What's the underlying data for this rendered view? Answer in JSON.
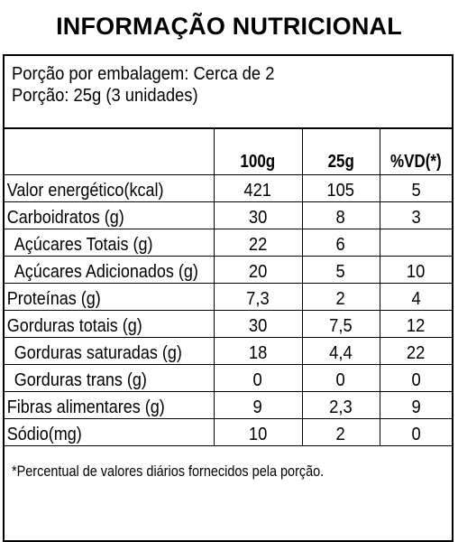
{
  "title": "INFORMAÇÃO NUTRICIONAL",
  "serving": {
    "per_package": "Porção por embalagem: Cerca de 2",
    "portion": "Porção: 25g (3 unidades)"
  },
  "table": {
    "headers": [
      "",
      "100g",
      "25g",
      "%VD(*)"
    ],
    "rows": [
      {
        "label": "Valor energético(kcal)",
        "v100": "421",
        "v25": "105",
        "vd": "5",
        "indent": false
      },
      {
        "label": "Carboidratos (g)",
        "v100": "30",
        "v25": "8",
        "vd": "3",
        "indent": false
      },
      {
        "label": "Açúcares Totais (g)",
        "v100": "22",
        "v25": "6",
        "vd": "",
        "indent": true
      },
      {
        "label": "Açúcares Adicionados (g)",
        "v100": "20",
        "v25": "5",
        "vd": "10",
        "indent": true
      },
      {
        "label": "Proteínas (g)",
        "v100": "7,3",
        "v25": "2",
        "vd": "4",
        "indent": false
      },
      {
        "label": "Gorduras totais (g)",
        "v100": "30",
        "v25": "7,5",
        "vd": "12",
        "indent": false
      },
      {
        "label": "Gorduras saturadas (g)",
        "v100": "18",
        "v25": "4,4",
        "vd": "22",
        "indent": true
      },
      {
        "label": "Gorduras trans (g)",
        "v100": "0",
        "v25": "0",
        "vd": "0",
        "indent": true
      },
      {
        "label": "Fibras alimentares (g)",
        "v100": "9",
        "v25": "2,3",
        "vd": "9",
        "indent": false
      },
      {
        "label": "Sódio(mg)",
        "v100": "10",
        "v25": "2",
        "vd": "0",
        "indent": false
      }
    ]
  },
  "footnote": "*Percentual de valores diários fornecidos pela porção."
}
